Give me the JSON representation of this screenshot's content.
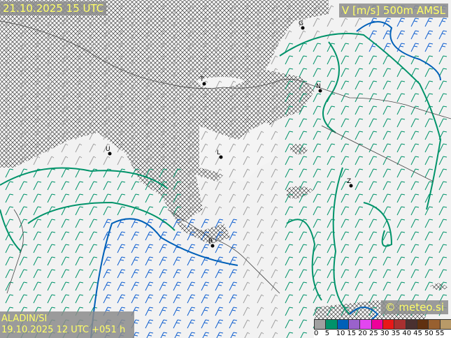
{
  "header": {
    "valid_time": "21.10.2025 15 UTC",
    "parameter": "V [m/s] 500m AMSL"
  },
  "footer": {
    "model": "ALADIN/SI",
    "run": "19.10.2025 12 UTC +051 h",
    "copyright": "© meteo.si"
  },
  "legend": {
    "labels": [
      "0",
      "5",
      "10",
      "15",
      "20",
      "25",
      "30",
      "35",
      "40",
      "45",
      "50",
      "55"
    ],
    "colors": [
      "#a0a0a0",
      "#00936a",
      "#0060b8",
      "#9a62cc",
      "#e246f0",
      "#f0009a",
      "#e81818",
      "#a83030",
      "#4a3030",
      "#603010",
      "#986030",
      "#b89a68"
    ]
  },
  "cities": [
    {
      "label": "G"
    },
    {
      "label": "T"
    },
    {
      "label": "N"
    },
    {
      "label": "U"
    },
    {
      "label": "L"
    },
    {
      "label": "Z"
    },
    {
      "label": "R"
    }
  ],
  "colors": {
    "hatch": "#222222",
    "isotach_5": "#00936a",
    "isotach_10": "#0060b8",
    "barb_slow": "#a0a0a0",
    "barb_5": "#00936a",
    "barb_10": "#1060d0",
    "border": "#444444"
  }
}
